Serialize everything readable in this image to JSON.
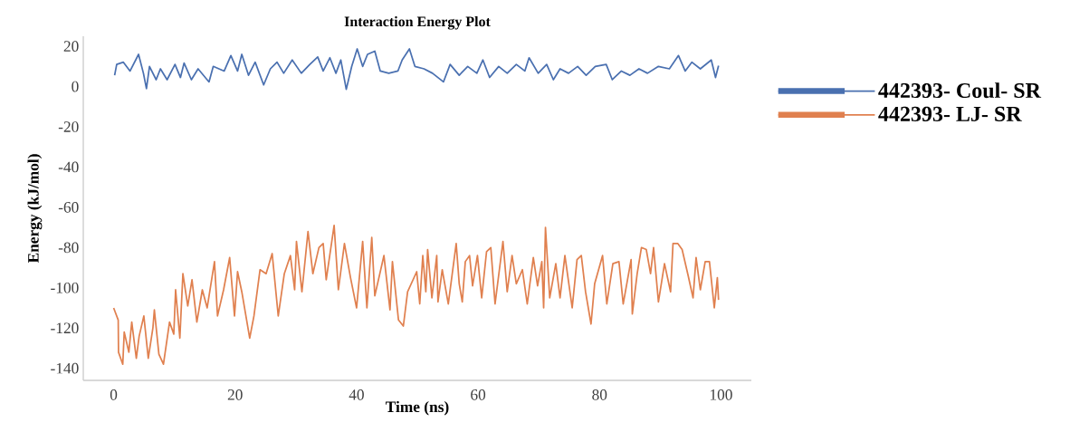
{
  "chart_data": {
    "type": "line",
    "title": "Interaction Energy Plot",
    "xlabel": "Time (ns)",
    "ylabel": "Energy (kJ/mol)",
    "xlim": [
      -5,
      105
    ],
    "ylim": [
      -146,
      25
    ],
    "xticks": [
      0,
      20,
      40,
      60,
      80,
      100
    ],
    "yticks": [
      -140,
      -120,
      -100,
      -80,
      -60,
      -40,
      -20,
      0,
      20
    ],
    "legend": "right",
    "series": [
      {
        "name": "442393- Coul- SR",
        "color": "#4a70b0",
        "x": [
          0.16,
          0.5,
          1.6,
          2.7,
          4.1,
          4.9,
          5.4,
          5.9,
          7.0,
          7.7,
          8.8,
          10.1,
          11.0,
          11.6,
          12.8,
          13.9,
          15.7,
          16.4,
          18.2,
          19.3,
          20.4,
          21.1,
          22.2,
          23.3,
          24.7,
          25.8,
          26.9,
          28.0,
          29.4,
          30.9,
          32.3,
          33.6,
          34.5,
          35.6,
          36.6,
          37.4,
          38.3,
          39.2,
          40.1,
          41.0,
          41.8,
          43.0,
          43.9,
          45.3,
          46.8,
          47.5,
          48.7,
          49.6,
          51.1,
          52.5,
          54.3,
          55.4,
          56.9,
          58.3,
          59.8,
          60.8,
          61.9,
          63.4,
          64.8,
          66.3,
          67.7,
          68.4,
          69.9,
          71.3,
          72.4,
          73.5,
          74.9,
          76.4,
          77.8,
          79.3,
          81.1,
          82.1,
          83.6,
          85.0,
          86.5,
          87.9,
          89.7,
          91.5,
          93.0,
          94.1,
          95.2,
          96.6,
          98.4,
          99.1,
          99.6
        ],
        "values": [
          5.6,
          11.0,
          12.1,
          7.7,
          16.0,
          6.6,
          -1.0,
          10.0,
          3.4,
          8.8,
          3.4,
          11.0,
          4.5,
          11.7,
          3.4,
          8.8,
          2.3,
          10.0,
          7.7,
          15.4,
          7.7,
          16.0,
          5.6,
          12.1,
          0.8,
          8.8,
          12.1,
          6.6,
          13.2,
          6.6,
          11.0,
          14.7,
          7.7,
          14.3,
          6.6,
          13.2,
          -1.4,
          10.0,
          18.7,
          10.0,
          16.0,
          17.6,
          7.7,
          6.6,
          7.7,
          13.2,
          18.7,
          10.0,
          8.8,
          6.6,
          2.3,
          11.0,
          5.6,
          10.0,
          6.6,
          13.2,
          4.5,
          10.0,
          6.6,
          11.0,
          7.7,
          14.3,
          6.6,
          11.0,
          3.4,
          8.8,
          6.6,
          10.0,
          5.6,
          10.0,
          11.0,
          3.4,
          7.7,
          5.6,
          8.8,
          6.6,
          10.0,
          8.8,
          15.4,
          7.7,
          12.1,
          8.8,
          13.2,
          4.5,
          10.4
        ]
      },
      {
        "name": "442393- LJ- SR",
        "color": "#e0804f",
        "x": [
          0.0,
          0.75,
          0.8,
          1.5,
          1.74,
          2.5,
          2.98,
          3.73,
          4.2,
          4.97,
          5.7,
          6.46,
          6.7,
          7.45,
          8.2,
          9.2,
          9.9,
          10.2,
          10.9,
          11.4,
          12.2,
          12.9,
          13.7,
          14.6,
          15.4,
          16.6,
          17.1,
          18.1,
          19.1,
          19.9,
          20.4,
          21.1,
          22.4,
          23.1,
          24.1,
          25.1,
          26.1,
          27.1,
          28.1,
          29.1,
          29.8,
          30.1,
          31.0,
          32.0,
          32.8,
          33.8,
          34.5,
          35.0,
          36.3,
          37.0,
          38.0,
          39.0,
          40.0,
          41.0,
          41.7,
          42.5,
          43.0,
          44.5,
          45.5,
          45.9,
          46.9,
          47.7,
          48.4,
          49.9,
          50.4,
          50.9,
          51.4,
          51.7,
          52.4,
          53.2,
          53.4,
          54.1,
          55.1,
          56.4,
          56.9,
          57.4,
          57.9,
          58.6,
          59.1,
          59.9,
          60.6,
          61.4,
          62.1,
          62.8,
          64.1,
          64.8,
          65.6,
          66.3,
          67.3,
          68.1,
          69.1,
          69.8,
          70.5,
          70.8,
          71.1,
          71.8,
          72.8,
          73.5,
          74.3,
          75.5,
          76.3,
          77.0,
          77.7,
          78.6,
          79.2,
          80.5,
          81.2,
          82.2,
          83.2,
          83.9,
          85.2,
          85.4,
          86.2,
          86.9,
          87.7,
          88.4,
          88.9,
          89.7,
          90.7,
          91.7,
          92.1,
          92.9,
          93.6,
          94.6,
          95.4,
          95.9,
          96.6,
          97.4,
          98.1,
          98.9,
          99.4,
          99.6
        ],
        "values": [
          -110,
          -116,
          -132,
          -138,
          -122,
          -132,
          -117,
          -135,
          -124,
          -114,
          -135,
          -120,
          -111,
          -133,
          -138,
          -117,
          -123,
          -101,
          -125,
          -93,
          -109,
          -96,
          -117,
          -101,
          -110,
          -87,
          -114,
          -101,
          -85,
          -114,
          -92,
          -102,
          -125,
          -114,
          -91,
          -93,
          -83,
          -114,
          -93,
          -84,
          -101,
          -77,
          -102,
          -72,
          -93,
          -80,
          -78,
          -96,
          -69,
          -101,
          -78,
          -95,
          -110,
          -77,
          -110,
          -75,
          -104,
          -84,
          -111,
          -87,
          -116,
          -119,
          -102,
          -92,
          -108,
          -84,
          -102,
          -81,
          -105,
          -84,
          -107,
          -91,
          -108,
          -78,
          -98,
          -107,
          -87,
          -84,
          -99,
          -84,
          -105,
          -82,
          -80,
          -108,
          -77,
          -102,
          -84,
          -98,
          -91,
          -108,
          -85,
          -99,
          -87,
          -110,
          -70,
          -105,
          -88,
          -105,
          -84,
          -110,
          -86,
          -84,
          -102,
          -118,
          -98,
          -84,
          -108,
          -88,
          -87,
          -108,
          -86,
          -113,
          -93,
          -80,
          -81,
          -93,
          -80,
          -107,
          -88,
          -102,
          -78,
          -78,
          -81,
          -94,
          -105,
          -85,
          -101,
          -87,
          -87,
          -110,
          -95,
          -106
        ]
      }
    ]
  }
}
